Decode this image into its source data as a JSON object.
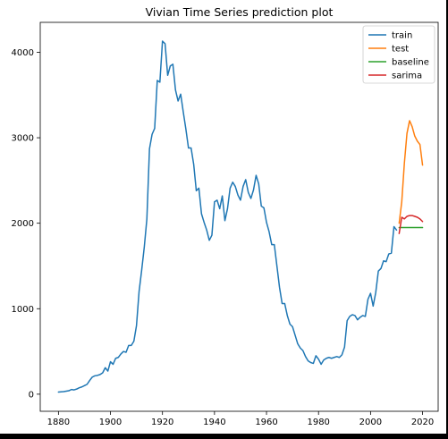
{
  "chart_data": {
    "type": "line",
    "title": "Vivian Time Series prediction plot",
    "xlabel": "",
    "ylabel": "",
    "xlim": [
      1873,
      2026
    ],
    "ylim": [
      -200,
      4350
    ],
    "x_ticks": [
      1880,
      1900,
      1920,
      1940,
      1960,
      1980,
      2000,
      2020
    ],
    "x_tick_labels": [
      "1880",
      "1900",
      "1920",
      "1940",
      "1960",
      "1980",
      "2000",
      "2020"
    ],
    "y_ticks": [
      0,
      1000,
      2000,
      3000,
      4000
    ],
    "y_tick_labels": [
      "0",
      "1000",
      "2000",
      "3000",
      "4000"
    ],
    "legend": {
      "placement": "top-right"
    },
    "series": [
      {
        "name": "train",
        "color": "#1f77b4",
        "x": [
          1880,
          1881,
          1882,
          1883,
          1884,
          1885,
          1886,
          1887,
          1888,
          1889,
          1890,
          1891,
          1892,
          1893,
          1894,
          1895,
          1896,
          1897,
          1898,
          1899,
          1900,
          1901,
          1902,
          1903,
          1904,
          1905,
          1906,
          1907,
          1908,
          1909,
          1910,
          1911,
          1912,
          1913,
          1914,
          1915,
          1916,
          1917,
          1918,
          1919,
          1920,
          1921,
          1922,
          1923,
          1924,
          1925,
          1926,
          1927,
          1928,
          1929,
          1930,
          1931,
          1932,
          1933,
          1934,
          1935,
          1936,
          1937,
          1938,
          1939,
          1940,
          1941,
          1942,
          1943,
          1944,
          1945,
          1946,
          1947,
          1948,
          1949,
          1950,
          1951,
          1952,
          1953,
          1954,
          1955,
          1956,
          1957,
          1958,
          1959,
          1960,
          1961,
          1962,
          1963,
          1964,
          1965,
          1966,
          1967,
          1968,
          1969,
          1970,
          1971,
          1972,
          1973,
          1974,
          1975,
          1976,
          1977,
          1978,
          1979,
          1980,
          1981,
          1982,
          1983,
          1984,
          1985,
          1986,
          1987,
          1988,
          1989,
          1990,
          1991,
          1992,
          1993,
          1994,
          1995,
          1996,
          1997,
          1998,
          1999,
          2000,
          2001,
          2002,
          2003,
          2004,
          2005,
          2006,
          2007,
          2008,
          2009,
          2010
        ],
        "values": [
          25,
          28,
          30,
          35,
          40,
          55,
          50,
          60,
          75,
          85,
          100,
          115,
          160,
          200,
          215,
          220,
          230,
          250,
          310,
          270,
          380,
          350,
          420,
          430,
          470,
          500,
          490,
          570,
          570,
          620,
          800,
          1200,
          1450,
          1720,
          2050,
          2870,
          3040,
          3110,
          3670,
          3650,
          4130,
          4100,
          3730,
          3840,
          3860,
          3560,
          3430,
          3510,
          3300,
          3100,
          2880,
          2880,
          2690,
          2380,
          2410,
          2110,
          2010,
          1920,
          1800,
          1860,
          2250,
          2270,
          2170,
          2320,
          2030,
          2170,
          2410,
          2480,
          2430,
          2330,
          2270,
          2430,
          2510,
          2360,
          2290,
          2390,
          2560,
          2460,
          2200,
          2180,
          2010,
          1900,
          1750,
          1750,
          1500,
          1250,
          1060,
          1060,
          920,
          820,
          790,
          690,
          590,
          540,
          510,
          440,
          390,
          370,
          360,
          450,
          410,
          350,
          400,
          420,
          430,
          420,
          430,
          440,
          430,
          460,
          550,
          860,
          910,
          930,
          920,
          870,
          900,
          920,
          910,
          1110,
          1180,
          1030,
          1190,
          1440,
          1470,
          1560,
          1550,
          1640,
          1650,
          1960,
          1920
        ]
      },
      {
        "name": "test",
        "color": "#ff7f0e",
        "x": [
          2011,
          2012,
          2013,
          2014,
          2015,
          2016,
          2017,
          2018,
          2019,
          2020
        ],
        "values": [
          2000,
          2250,
          2700,
          3050,
          3200,
          3130,
          3020,
          2960,
          2920,
          2680
        ]
      },
      {
        "name": "baseline",
        "color": "#2ca02c",
        "x": [
          2011,
          2020
        ],
        "values": [
          1950,
          1950
        ]
      },
      {
        "name": "sarima",
        "color": "#d62728",
        "x": [
          2011,
          2012,
          2013,
          2014,
          2015,
          2016,
          2017,
          2018,
          2019,
          2020
        ],
        "values": [
          1880,
          2070,
          2050,
          2080,
          2090,
          2090,
          2080,
          2070,
          2050,
          2020
        ]
      }
    ]
  }
}
